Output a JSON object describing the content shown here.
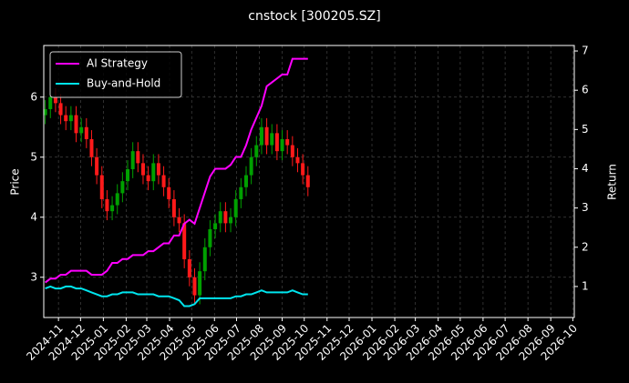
{
  "chart_data": {
    "type": "candlestick",
    "title": "cnstock [300205.SZ]",
    "ylabel": "Price",
    "y2label": "Return",
    "x": [
      "2024-10-14",
      "2024-10-21",
      "2024-10-28",
      "2024-11-04",
      "2024-11-11",
      "2024-11-18",
      "2024-11-25",
      "2024-12-02",
      "2024-12-09",
      "2024-12-16",
      "2024-12-23",
      "2024-12-30",
      "2025-01-06",
      "2025-01-13",
      "2025-01-20",
      "2025-01-27",
      "2025-02-03",
      "2025-02-10",
      "2025-02-17",
      "2025-02-24",
      "2025-03-03",
      "2025-03-10",
      "2025-03-17",
      "2025-03-24",
      "2025-03-31",
      "2025-04-07",
      "2025-04-14",
      "2025-04-21",
      "2025-04-28",
      "2025-05-05",
      "2025-05-12",
      "2025-05-19",
      "2025-05-26",
      "2025-06-02",
      "2025-06-09",
      "2025-06-16",
      "2025-06-23",
      "2025-06-30",
      "2025-07-07",
      "2025-07-14",
      "2025-07-21",
      "2025-07-28",
      "2025-08-04",
      "2025-08-11",
      "2025-08-18",
      "2025-08-25",
      "2025-09-01",
      "2025-09-08",
      "2025-09-15",
      "2025-09-22",
      "2025-09-29",
      "2025-10-06"
    ],
    "open": [
      5.7,
      5.8,
      6.0,
      5.9,
      5.7,
      5.6,
      5.7,
      5.4,
      5.5,
      5.3,
      5.0,
      4.7,
      4.3,
      4.1,
      4.2,
      4.4,
      4.6,
      4.8,
      5.1,
      4.9,
      4.7,
      4.6,
      4.9,
      4.7,
      4.5,
      4.3,
      4.0,
      3.9,
      3.3,
      3.0,
      2.7,
      3.1,
      3.5,
      3.8,
      3.9,
      4.1,
      3.9,
      4.0,
      4.3,
      4.5,
      4.7,
      5.0,
      5.2,
      5.5,
      5.2,
      5.4,
      5.1,
      5.3,
      5.2,
      5.0,
      4.9,
      4.7
    ],
    "high": [
      5.95,
      6.15,
      6.15,
      6.05,
      5.85,
      5.85,
      5.85,
      5.65,
      5.65,
      5.45,
      5.15,
      4.85,
      4.45,
      4.35,
      4.55,
      4.75,
      4.95,
      5.25,
      5.25,
      5.05,
      4.85,
      5.05,
      5.05,
      4.85,
      4.65,
      4.45,
      4.15,
      4.05,
      3.45,
      3.15,
      3.25,
      3.65,
      3.95,
      4.05,
      4.25,
      4.25,
      4.15,
      4.45,
      4.65,
      4.85,
      5.15,
      5.35,
      5.65,
      5.65,
      5.55,
      5.55,
      5.45,
      5.45,
      5.35,
      5.15,
      5.05,
      4.85
    ],
    "low": [
      5.55,
      5.65,
      5.75,
      5.55,
      5.45,
      5.45,
      5.25,
      5.25,
      5.15,
      4.85,
      4.55,
      4.15,
      3.95,
      3.95,
      4.05,
      4.25,
      4.45,
      4.65,
      4.75,
      4.55,
      4.45,
      4.45,
      4.55,
      4.35,
      4.15,
      3.85,
      3.75,
      3.15,
      2.85,
      2.55,
      2.55,
      2.95,
      3.35,
      3.65,
      3.75,
      3.75,
      3.75,
      3.85,
      4.15,
      4.35,
      4.55,
      4.85,
      5.05,
      5.05,
      5.05,
      4.95,
      4.95,
      5.05,
      4.85,
      4.75,
      4.55,
      4.35
    ],
    "close": [
      5.8,
      6.0,
      5.9,
      5.7,
      5.6,
      5.7,
      5.4,
      5.5,
      5.3,
      5.0,
      4.7,
      4.3,
      4.1,
      4.2,
      4.4,
      4.6,
      4.8,
      5.1,
      4.9,
      4.7,
      4.6,
      4.9,
      4.7,
      4.5,
      4.3,
      4.0,
      3.9,
      3.3,
      3.0,
      2.7,
      3.1,
      3.5,
      3.8,
      3.9,
      4.1,
      3.9,
      4.0,
      4.3,
      4.5,
      4.7,
      5.0,
      5.2,
      5.5,
      5.2,
      5.4,
      5.1,
      5.3,
      5.2,
      5.0,
      4.9,
      4.7,
      4.5
    ],
    "up_color": "#00a000",
    "down_color": "#ff1a1a",
    "series": [
      {
        "name": "AI Strategy",
        "color": "#ff00ff",
        "axis": "y2",
        "values": [
          1.1,
          1.2,
          1.2,
          1.3,
          1.3,
          1.4,
          1.4,
          1.4,
          1.4,
          1.3,
          1.3,
          1.3,
          1.4,
          1.6,
          1.6,
          1.7,
          1.7,
          1.8,
          1.8,
          1.8,
          1.9,
          1.9,
          2.0,
          2.1,
          2.1,
          2.3,
          2.3,
          2.6,
          2.7,
          2.6,
          3.0,
          3.4,
          3.8,
          4.0,
          4.0,
          4.0,
          4.1,
          4.3,
          4.3,
          4.6,
          5.0,
          5.3,
          5.6,
          6.1,
          6.2,
          6.3,
          6.4,
          6.4,
          6.8,
          6.8,
          6.8,
          6.8
        ]
      },
      {
        "name": "Buy-and-Hold",
        "color": "#00e5ee",
        "axis": "y2",
        "values": [
          0.95,
          1.0,
          0.95,
          0.95,
          1.0,
          1.0,
          0.95,
          0.95,
          0.9,
          0.85,
          0.8,
          0.75,
          0.75,
          0.8,
          0.8,
          0.85,
          0.85,
          0.85,
          0.8,
          0.8,
          0.8,
          0.8,
          0.75,
          0.75,
          0.75,
          0.7,
          0.65,
          0.5,
          0.5,
          0.55,
          0.7,
          0.7,
          0.7,
          0.7,
          0.7,
          0.7,
          0.7,
          0.75,
          0.75,
          0.8,
          0.8,
          0.85,
          0.9,
          0.85,
          0.85,
          0.85,
          0.85,
          0.85,
          0.9,
          0.85,
          0.8,
          0.8
        ]
      }
    ],
    "xlim": [
      "2024-10-12",
      "2026-10-03"
    ],
    "xticks": [
      {
        "value": "2024-11-01",
        "label": "2024-11"
      },
      {
        "value": "2024-12-01",
        "label": "2024-12"
      },
      {
        "value": "2025-01-01",
        "label": "2025-01"
      },
      {
        "value": "2025-02-01",
        "label": "2025-02"
      },
      {
        "value": "2025-03-01",
        "label": "2025-03"
      },
      {
        "value": "2025-04-01",
        "label": "2025-04"
      },
      {
        "value": "2025-05-01",
        "label": "2025-05"
      },
      {
        "value": "2025-06-01",
        "label": "2025-06"
      },
      {
        "value": "2025-07-01",
        "label": "2025-07"
      },
      {
        "value": "2025-08-01",
        "label": "2025-08"
      },
      {
        "value": "2025-09-01",
        "label": "2025-09"
      },
      {
        "value": "2025-10-01",
        "label": "2025-10"
      },
      {
        "value": "2025-11-01",
        "label": "2025-11"
      },
      {
        "value": "2025-12-01",
        "label": "2025-12"
      },
      {
        "value": "2026-01-01",
        "label": "2026-01"
      },
      {
        "value": "2026-02-01",
        "label": "2026-02"
      },
      {
        "value": "2026-03-01",
        "label": "2026-03"
      },
      {
        "value": "2026-04-01",
        "label": "2026-04"
      },
      {
        "value": "2026-05-01",
        "label": "2026-05"
      },
      {
        "value": "2026-06-01",
        "label": "2026-06"
      },
      {
        "value": "2026-07-01",
        "label": "2026-07"
      },
      {
        "value": "2026-08-01",
        "label": "2026-08"
      },
      {
        "value": "2026-09-01",
        "label": "2026-09"
      },
      {
        "value": "2026-10-01",
        "label": "2026-10"
      }
    ],
    "ylim": [
      2.33,
      6.86
    ],
    "yticks": [
      3,
      4,
      5,
      6
    ],
    "y2lim": [
      0.21,
      7.14
    ],
    "y2ticks": [
      1,
      2,
      3,
      4,
      5,
      6,
      7
    ],
    "grid": true,
    "legend": "upper left"
  }
}
